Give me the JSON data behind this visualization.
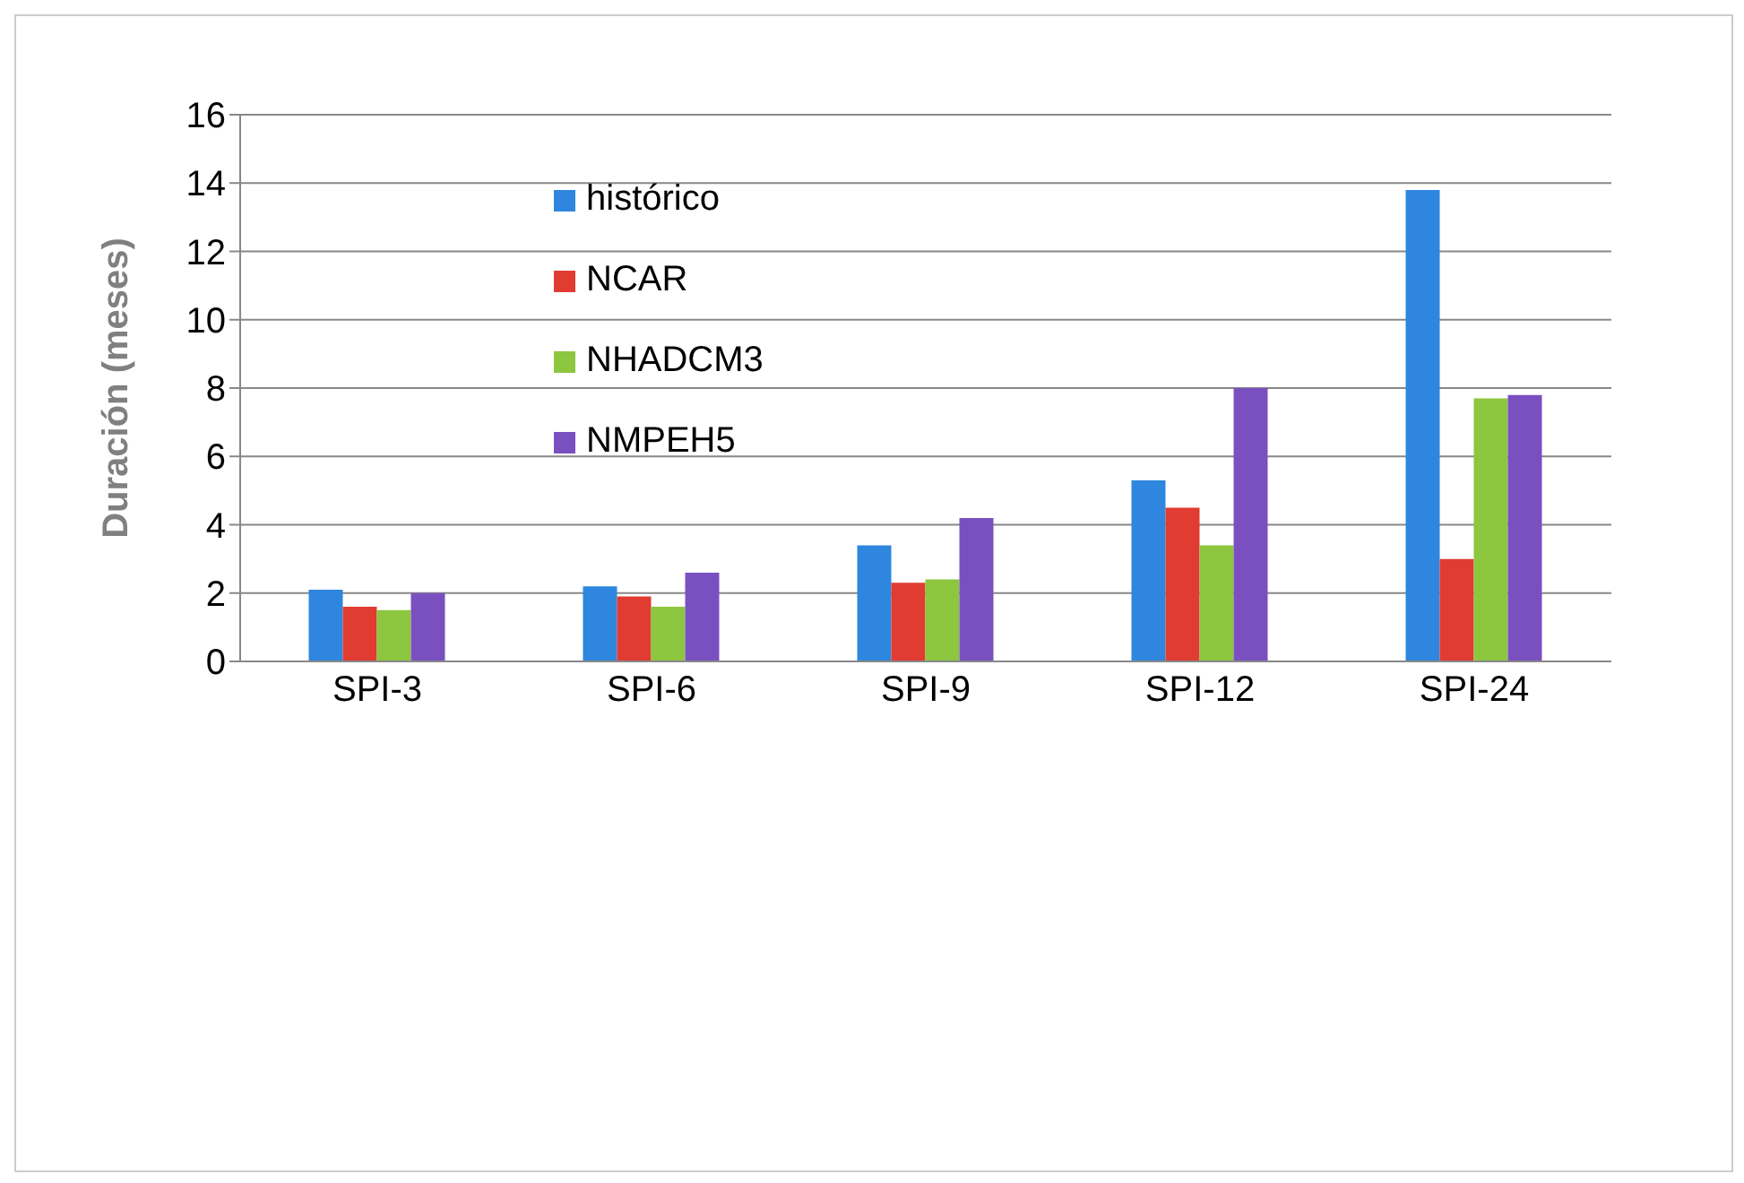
{
  "chart_data": {
    "type": "bar",
    "ylabel": "Duración (meses)",
    "categories": [
      "SPI-3",
      "SPI-6",
      "SPI-9",
      "SPI-12",
      "SPI-24"
    ],
    "series": [
      {
        "name": "histórico",
        "color": "#2e86de",
        "values": [
          2.1,
          2.2,
          3.4,
          5.3,
          13.8
        ]
      },
      {
        "name": "NCAR",
        "color": "#e03c31",
        "values": [
          1.6,
          1.9,
          2.3,
          4.5,
          3.0
        ]
      },
      {
        "name": "NHADCM3",
        "color": "#8dc63f",
        "values": [
          1.5,
          1.6,
          2.4,
          3.4,
          7.7
        ]
      },
      {
        "name": "NMPEH5",
        "color": "#7a50c0",
        "values": [
          2.0,
          2.6,
          4.2,
          8.0,
          7.8
        ]
      }
    ],
    "ylim": [
      0,
      16
    ],
    "yticks": [
      0,
      2,
      4,
      6,
      8,
      10,
      12,
      14,
      16
    ],
    "grid": "y",
    "legend": "top left"
  }
}
